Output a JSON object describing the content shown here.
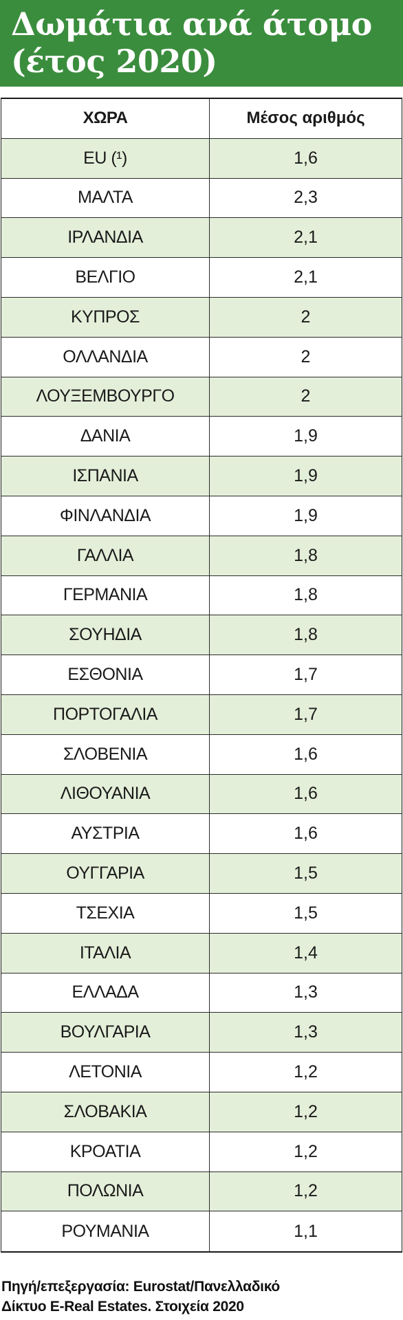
{
  "header": {
    "title_line1": "Δωμάτια ανά άτομο",
    "title_line2": "(έτος 2020)",
    "band_color": "#3b8d3e"
  },
  "table": {
    "col_country": "ΧΩΡΑ",
    "col_value": "Μέσος αριθμός"
  },
  "chart_data": {
    "type": "table",
    "columns": [
      "ΧΩΡΑ",
      "Μέσος αριθμός"
    ],
    "rows": [
      {
        "country": "EU (¹)",
        "value": "1,6"
      },
      {
        "country": "ΜΑΛΤΑ",
        "value": "2,3"
      },
      {
        "country": "ΙΡΛΑΝΔΙΑ",
        "value": "2,1"
      },
      {
        "country": "ΒΕΛΓΙΟ",
        "value": "2,1"
      },
      {
        "country": "ΚΥΠΡΟΣ",
        "value": "2"
      },
      {
        "country": "ΟΛΛΑΝΔΙΑ",
        "value": "2"
      },
      {
        "country": "ΛΟΥΞΕΜΒΟΥΡΓΟ",
        "value": "2"
      },
      {
        "country": "ΔΑΝΙΑ",
        "value": "1,9"
      },
      {
        "country": "ΙΣΠΑΝΙΑ",
        "value": "1,9"
      },
      {
        "country": "ΦΙΝΛΑΝΔΙΑ",
        "value": "1,9"
      },
      {
        "country": "ΓΑΛΛΙΑ",
        "value": "1,8"
      },
      {
        "country": "ΓΕΡΜΑΝΙΑ",
        "value": "1,8"
      },
      {
        "country": "ΣΟΥΗΔΙΑ",
        "value": "1,8"
      },
      {
        "country": "ΕΣΘΟΝΙΑ",
        "value": "1,7"
      },
      {
        "country": "ΠΟΡΤΟΓΑΛΙΑ",
        "value": "1,7"
      },
      {
        "country": "ΣΛΟΒΕΝΙΑ",
        "value": "1,6"
      },
      {
        "country": "ΛΙΘΟΥΑΝΙΑ",
        "value": "1,6"
      },
      {
        "country": "ΑΥΣΤΡΙΑ",
        "value": "1,6"
      },
      {
        "country": "ΟΥΓΓΑΡΙΑ",
        "value": "1,5"
      },
      {
        "country": "ΤΣΕΧΙΑ",
        "value": "1,5"
      },
      {
        "country": "ΙΤΑΛΙΑ",
        "value": "1,4"
      },
      {
        "country": "ΕΛΛΑΔΑ",
        "value": "1,3"
      },
      {
        "country": "ΒΟΥΛΓΑΡΙΑ",
        "value": "1,3"
      },
      {
        "country": "ΛΕΤΟΝΙΑ",
        "value": "1,2"
      },
      {
        "country": "ΣΛΟΒΑΚΙΑ",
        "value": "1,2"
      },
      {
        "country": "ΚΡΟΑΤΙΑ",
        "value": "1,2"
      },
      {
        "country": "ΠΟΛΩΝΙΑ",
        "value": "1,2"
      },
      {
        "country": "ΡΟΥΜΑΝΙΑ",
        "value": "1,1"
      }
    ],
    "row_shading": [
      "#e4efd9",
      "#ffffff"
    ]
  },
  "footer": {
    "source_line1": "Πηγή/επεξεργασία: Eurostat/Πανελλαδικό",
    "source_line2": "Δίκτυο E-Real Estates. Στοιχεία 2020"
  }
}
